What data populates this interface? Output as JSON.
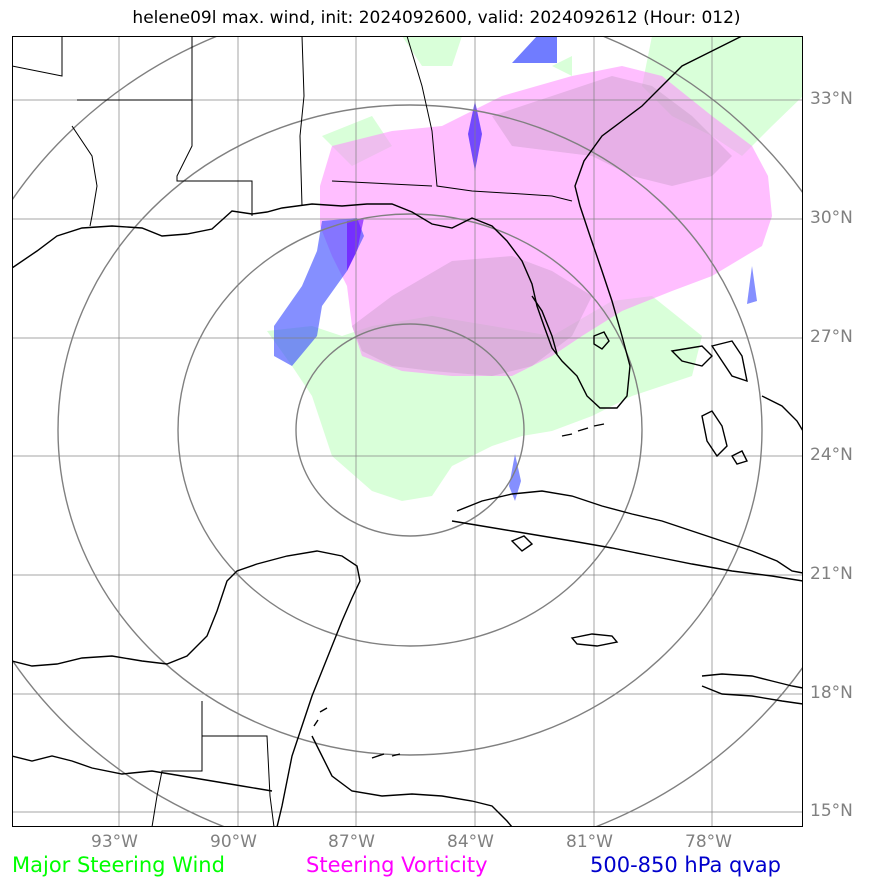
{
  "title": "helene09l max. wind, init: 2024092600, valid: 2024092612 (Hour: 012)",
  "lon_ticks": [
    "93°W",
    "90°W",
    "87°W",
    "84°W",
    "81°W",
    "78°W"
  ],
  "lat_ticks": [
    "33°N",
    "30°N",
    "27°N",
    "24°N",
    "21°N",
    "18°N",
    "15°N"
  ],
  "legend": {
    "wind": "Major Steering Wind",
    "vorticity": "Steering Vorticity",
    "qvap": "500-850 hPa qvap"
  },
  "colors": {
    "wind": "#00ff00",
    "vorticity": "#ff00ff",
    "qvap": "#0000cc",
    "grid": "#808080"
  },
  "map_extent": {
    "lon": [
      -95.7,
      -75.7
    ],
    "lat": [
      14.7,
      34.7
    ]
  },
  "range_rings_center": {
    "lon": -85.7,
    "lat": 24.7
  }
}
